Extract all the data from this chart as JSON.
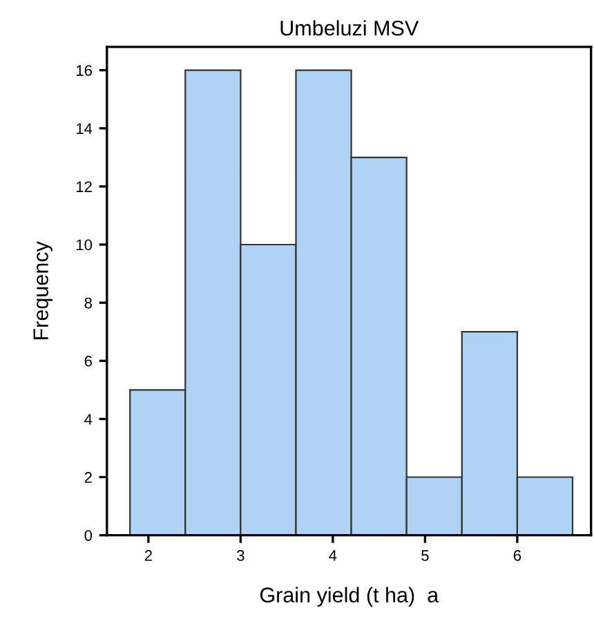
{
  "chart_data": {
    "type": "histogram",
    "title": "Umbeluzi MSV",
    "xlabel": "Grain yield (t ha)  a",
    "ylabel": "Frequency",
    "bins": [
      1.8,
      2.4,
      3.0,
      3.6,
      4.2,
      4.8,
      5.4,
      6.0,
      6.6
    ],
    "values": [
      5,
      16,
      10,
      16,
      13,
      2,
      7,
      2
    ],
    "color": "#b0d2f5",
    "xlim": [
      1.55,
      6.8
    ],
    "ylim": [
      0,
      16.8
    ],
    "xticks": [
      2,
      3,
      4,
      5,
      6
    ],
    "yticks": [
      0,
      2,
      4,
      6,
      8,
      10,
      12,
      14,
      16
    ],
    "grid": false,
    "legend": false
  }
}
